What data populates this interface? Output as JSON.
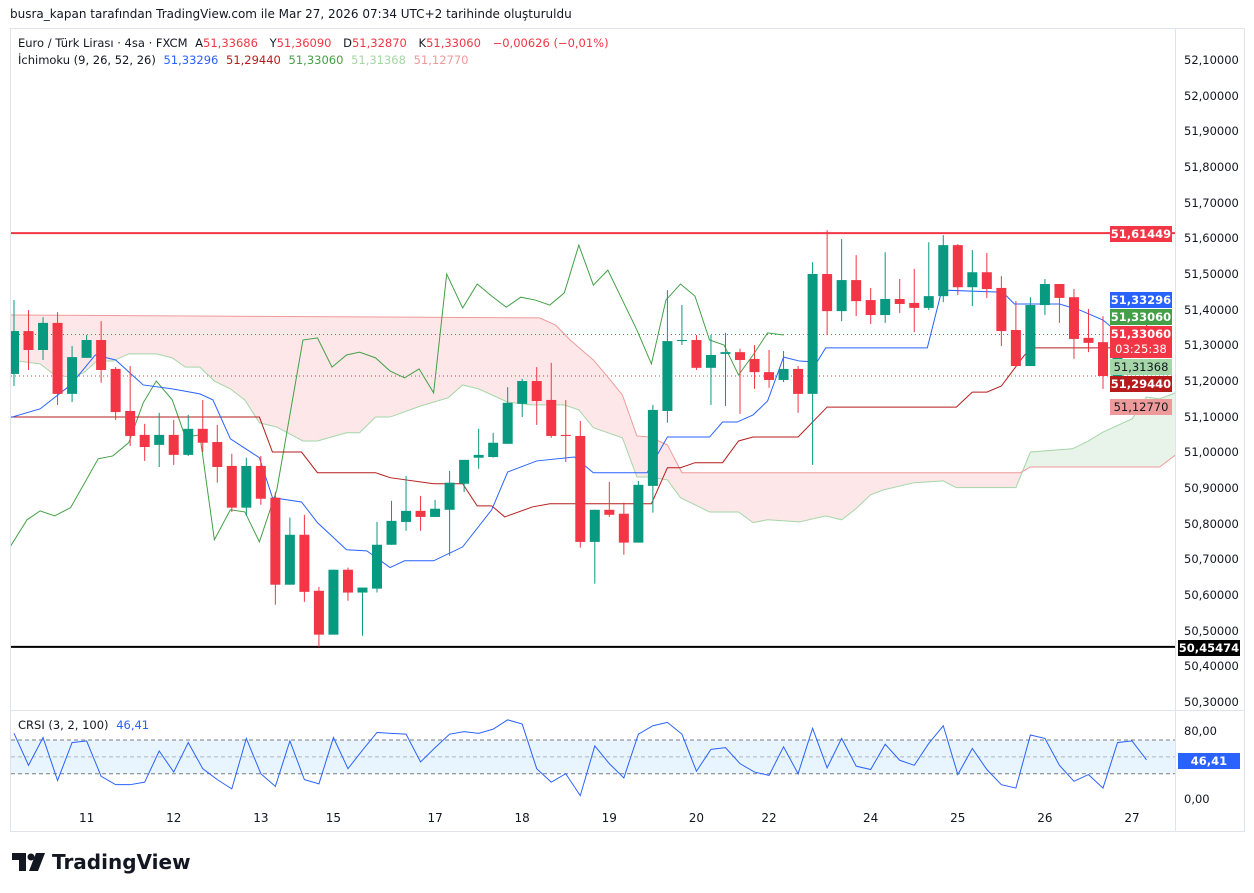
{
  "caption": "busra_kapan tarafından TradingView.com ile Mar 27, 2026 07:34 UTC+2 tarihinde oluşturuldu",
  "legend": {
    "symbol": "Euro / Türk Lirası · 4sa · FXCM",
    "open_label": "A",
    "open": "51,33686",
    "high_label": "Y",
    "high": "51,36090",
    "low_label": "D",
    "low": "51,32870",
    "close_label": "K",
    "close": "51,33060",
    "change": "−0,00626 (−0,01%)",
    "ichimoku_name": "İchimoku (9, 26, 52, 26)",
    "ichimoku_values": [
      "51,33296",
      "51,29440",
      "51,33060",
      "51,31368",
      "51,12770"
    ],
    "crsi_name": "CRSI (3, 2, 100)",
    "crsi_value": "46,41"
  },
  "price_axis": [
    "52,10000",
    "52,00000",
    "51,90000",
    "51,80000",
    "51,70000",
    "51,60000",
    "51,50000",
    "51,40000",
    "51,30000",
    "51,20000",
    "51,10000",
    "51,00000",
    "50,90000",
    "50,80000",
    "50,70000",
    "50,60000",
    "50,50000",
    "50,40000",
    "50,30000"
  ],
  "price_labels": {
    "resistance": "51,61449",
    "tenkan": "51,33296",
    "chikou": "51,33060",
    "last": "51,33060",
    "countdown": "03:25:38",
    "senkou_a": "51,31368",
    "kijun": "51,29440",
    "senkou_b": "51,12770",
    "support": "50,45474"
  },
  "crsi_axis": [
    "80,00",
    "0,00"
  ],
  "time_axis": [
    {
      "label": "11",
      "idx": 5
    },
    {
      "label": "12",
      "idx": 11
    },
    {
      "label": "13",
      "idx": 17
    },
    {
      "label": "15",
      "idx": 22
    },
    {
      "label": "17",
      "idx": 29
    },
    {
      "label": "18",
      "idx": 35
    },
    {
      "label": "19",
      "idx": 41
    },
    {
      "label": "20",
      "idx": 47
    },
    {
      "label": "22",
      "idx": 52
    },
    {
      "label": "24",
      "idx": 59
    },
    {
      "label": "25",
      "idx": 65
    },
    {
      "label": "26",
      "idx": 71
    },
    {
      "label": "27",
      "idx": 77
    }
  ],
  "logo_text": "TradingView",
  "colors": {
    "up": "#089981",
    "down": "#f23645",
    "tenkan": "#2962ff",
    "kijun": "#b71c1c",
    "chikou": "#43a047",
    "senkou_a": "#a5d6a7",
    "senkou_b": "#ef9a9a",
    "resistance": "#f23645",
    "support": "#000000",
    "crsi": "#2962ff"
  },
  "chart_data": {
    "type": "candlestick",
    "title": "Euro / Türk Lirası · 4sa · FXCM",
    "ylim": [
      50.25,
      52.15
    ],
    "horizontal_lines": [
      {
        "price": 51.61449,
        "style": "solid",
        "color": "#f23645"
      },
      {
        "price": 50.45474,
        "style": "solid",
        "color": "#000000"
      },
      {
        "price": 51.3306,
        "style": "dotted",
        "color": "#f23645"
      },
      {
        "price": 51.214,
        "style": "dotted",
        "color": "#f23645"
      }
    ],
    "candles_ohlc": [
      [
        51.22,
        51.427,
        51.186,
        51.34
      ],
      [
        51.34,
        51.399,
        51.231,
        51.287
      ],
      [
        51.287,
        51.379,
        51.259,
        51.363
      ],
      [
        51.363,
        51.393,
        51.133,
        51.164
      ],
      [
        51.164,
        51.298,
        51.141,
        51.267
      ],
      [
        51.265,
        51.329,
        51.265,
        51.315
      ],
      [
        51.315,
        51.368,
        51.195,
        51.231
      ],
      [
        51.234,
        51.239,
        51.091,
        51.113
      ],
      [
        51.116,
        51.242,
        51.018,
        51.046
      ],
      [
        51.049,
        51.08,
        50.976,
        51.015
      ],
      [
        51.021,
        51.111,
        50.959,
        51.049
      ],
      [
        51.049,
        51.091,
        50.965,
        50.993
      ],
      [
        50.993,
        51.105,
        50.99,
        51.066
      ],
      [
        51.066,
        51.147,
        51.001,
        51.027
      ],
      [
        51.029,
        51.077,
        50.915,
        50.959
      ],
      [
        50.962,
        50.996,
        50.833,
        50.845
      ],
      [
        50.845,
        50.985,
        50.822,
        50.962
      ],
      [
        50.962,
        50.99,
        50.853,
        50.87
      ],
      [
        50.873,
        50.889,
        50.573,
        50.629
      ],
      [
        50.629,
        50.817,
        50.629,
        50.769
      ],
      [
        50.769,
        50.825,
        50.581,
        50.609
      ],
      [
        50.612,
        50.623,
        50.455,
        50.489
      ],
      [
        50.489,
        50.671,
        50.489,
        50.671
      ],
      [
        50.671,
        50.677,
        50.584,
        50.607
      ],
      [
        50.607,
        50.621,
        50.486,
        50.621
      ],
      [
        50.618,
        50.805,
        50.607,
        50.741
      ],
      [
        50.741,
        50.864,
        50.741,
        50.808
      ],
      [
        50.805,
        50.934,
        50.78,
        50.836
      ],
      [
        50.836,
        50.878,
        50.78,
        50.819
      ],
      [
        50.819,
        50.867,
        50.819,
        50.842
      ],
      [
        50.839,
        50.948,
        50.71,
        50.915
      ],
      [
        50.912,
        50.979,
        50.889,
        50.979
      ],
      [
        50.985,
        51.066,
        50.954,
        50.993
      ],
      [
        50.987,
        51.055,
        50.985,
        51.027
      ],
      [
        51.024,
        51.183,
        51.024,
        51.139
      ],
      [
        51.136,
        51.206,
        51.099,
        51.2
      ],
      [
        51.2,
        51.239,
        51.077,
        51.144
      ],
      [
        51.147,
        51.251,
        51.041,
        51.046
      ],
      [
        51.049,
        51.147,
        50.973,
        51.046
      ],
      [
        51.046,
        51.088,
        50.733,
        50.749
      ],
      [
        50.749,
        50.839,
        50.632,
        50.839
      ],
      [
        50.839,
        50.917,
        50.819,
        50.825
      ],
      [
        50.828,
        50.859,
        50.713,
        50.747
      ],
      [
        50.747,
        50.92,
        50.747,
        50.909
      ],
      [
        50.906,
        51.133,
        50.831,
        51.119
      ],
      [
        51.116,
        51.455,
        51.083,
        51.312
      ],
      [
        51.312,
        51.413,
        51.301,
        51.315
      ],
      [
        51.315,
        51.329,
        51.231,
        51.237
      ],
      [
        51.237,
        51.329,
        51.133,
        51.273
      ],
      [
        51.276,
        51.335,
        51.13,
        51.281
      ],
      [
        51.281,
        51.29,
        51.108,
        51.259
      ],
      [
        51.262,
        51.301,
        51.178,
        51.225
      ],
      [
        51.225,
        51.287,
        51.181,
        51.203
      ],
      [
        51.203,
        51.284,
        51.197,
        51.234
      ],
      [
        51.234,
        51.242,
        51.111,
        51.164
      ],
      [
        51.164,
        51.533,
        50.965,
        51.5
      ],
      [
        51.5,
        51.623,
        51.329,
        51.396
      ],
      [
        51.396,
        51.598,
        51.368,
        51.483
      ],
      [
        51.483,
        51.553,
        51.382,
        51.424
      ],
      [
        51.427,
        51.461,
        51.36,
        51.385
      ],
      [
        51.385,
        51.561,
        51.363,
        51.43
      ],
      [
        51.43,
        51.486,
        51.391,
        51.416
      ],
      [
        51.419,
        51.514,
        51.337,
        51.405
      ],
      [
        51.405,
        51.589,
        51.399,
        51.438
      ],
      [
        51.438,
        51.609,
        51.421,
        51.581
      ],
      [
        51.581,
        51.584,
        51.441,
        51.463
      ],
      [
        51.463,
        51.567,
        51.41,
        51.505
      ],
      [
        51.505,
        51.559,
        51.433,
        51.458
      ],
      [
        51.461,
        51.494,
        51.298,
        51.34
      ],
      [
        51.343,
        51.424,
        51.242,
        51.242
      ],
      [
        51.242,
        51.435,
        51.242,
        51.413
      ],
      [
        51.413,
        51.486,
        51.385,
        51.472
      ],
      [
        51.472,
        51.472,
        51.363,
        51.433
      ],
      [
        51.435,
        51.458,
        51.262,
        51.318
      ],
      [
        51.321,
        51.402,
        51.281,
        51.307
      ],
      [
        51.309,
        51.382,
        51.178,
        51.214
      ],
      [
        51.214,
        51.337,
        51.214,
        51.293
      ],
      [
        51.293,
        51.34,
        51.293,
        51.335
      ],
      [
        51.33686,
        51.3609,
        51.3287,
        51.3306
      ]
    ],
    "tenkan": [
      [
        -0.3,
        51.097
      ],
      [
        1.8,
        51.122
      ],
      [
        3.9,
        51.189
      ],
      [
        5.6,
        51.273
      ],
      [
        7.0,
        51.259
      ],
      [
        8.9,
        51.189
      ],
      [
        10.9,
        51.178
      ],
      [
        12.8,
        51.164
      ],
      [
        13.7,
        51.147
      ],
      [
        14.9,
        51.038
      ],
      [
        16.9,
        50.985
      ],
      [
        17.8,
        50.873
      ],
      [
        19.8,
        50.861
      ],
      [
        20.9,
        50.803
      ],
      [
        22.9,
        50.727
      ],
      [
        24.3,
        50.724
      ],
      [
        25.9,
        50.677
      ],
      [
        26.9,
        50.696
      ],
      [
        28.9,
        50.696
      ],
      [
        30.9,
        50.735
      ],
      [
        32.9,
        50.839
      ],
      [
        34.0,
        50.945
      ],
      [
        36.0,
        50.976
      ],
      [
        38.6,
        50.987
      ],
      [
        39.9,
        50.943
      ],
      [
        43.6,
        50.943
      ],
      [
        45.0,
        51.043
      ],
      [
        47.9,
        51.043
      ],
      [
        48.8,
        51.085
      ],
      [
        49.8,
        51.085
      ],
      [
        50.9,
        51.105
      ],
      [
        51.9,
        51.144
      ],
      [
        53.0,
        51.267
      ],
      [
        54.1,
        51.256
      ],
      [
        55.3,
        51.253
      ],
      [
        55.9,
        51.293
      ],
      [
        62.9,
        51.293
      ],
      [
        63.9,
        51.455
      ],
      [
        68.1,
        51.449
      ],
      [
        68.9,
        51.416
      ],
      [
        72.0,
        51.416
      ],
      [
        73.4,
        51.399
      ],
      [
        75.0,
        51.371
      ],
      [
        76.0,
        51.337
      ],
      [
        77.5,
        51.333
      ]
    ],
    "kijun": [
      [
        -0.3,
        51.099
      ],
      [
        16.9,
        51.099
      ],
      [
        17.8,
        51.001
      ],
      [
        19.8,
        51.001
      ],
      [
        20.9,
        50.943
      ],
      [
        24.9,
        50.943
      ],
      [
        25.9,
        50.929
      ],
      [
        28.9,
        50.912
      ],
      [
        30.9,
        50.912
      ],
      [
        31.9,
        50.85
      ],
      [
        32.9,
        50.85
      ],
      [
        33.8,
        50.819
      ],
      [
        35.7,
        50.847
      ],
      [
        36.9,
        50.856
      ],
      [
        43.9,
        50.856
      ],
      [
        45.0,
        50.957
      ],
      [
        45.9,
        50.957
      ],
      [
        46.9,
        50.971
      ],
      [
        48.8,
        50.971
      ],
      [
        49.9,
        51.032
      ],
      [
        50.9,
        51.043
      ],
      [
        54.0,
        51.043
      ],
      [
        56.0,
        51.127
      ],
      [
        64.9,
        51.127
      ],
      [
        66.0,
        51.169
      ],
      [
        67.0,
        51.169
      ],
      [
        68.0,
        51.186
      ],
      [
        69.6,
        51.273
      ],
      [
        70.3,
        51.293
      ],
      [
        77.9,
        51.293
      ]
    ],
    "chikou": [
      [
        -0.3,
        50.733
      ],
      [
        0.9,
        50.811
      ],
      [
        1.8,
        50.836
      ],
      [
        2.8,
        50.822
      ],
      [
        3.9,
        50.845
      ],
      [
        5.8,
        50.982
      ],
      [
        6.8,
        50.99
      ],
      [
        7.9,
        51.027
      ],
      [
        8.9,
        51.139
      ],
      [
        9.8,
        51.2
      ],
      [
        10.9,
        51.147
      ],
      [
        11.8,
        51.043
      ],
      [
        12.8,
        51.049
      ],
      [
        13.8,
        50.755
      ],
      [
        14.9,
        50.839
      ],
      [
        15.9,
        50.833
      ],
      [
        16.9,
        50.749
      ],
      [
        18.1,
        50.895
      ],
      [
        19.9,
        51.315
      ],
      [
        20.9,
        51.321
      ],
      [
        21.9,
        51.239
      ],
      [
        22.9,
        51.273
      ],
      [
        23.8,
        51.281
      ],
      [
        24.9,
        51.265
      ],
      [
        25.9,
        51.228
      ],
      [
        26.9,
        51.209
      ],
      [
        27.9,
        51.234
      ],
      [
        28.9,
        51.167
      ],
      [
        29.8,
        51.5
      ],
      [
        30.9,
        51.405
      ],
      [
        31.9,
        51.472
      ],
      [
        32.9,
        51.438
      ],
      [
        33.9,
        51.407
      ],
      [
        34.9,
        51.435
      ],
      [
        35.9,
        51.427
      ],
      [
        36.9,
        51.413
      ],
      [
        37.9,
        51.447
      ],
      [
        38.9,
        51.581
      ],
      [
        39.9,
        51.469
      ],
      [
        40.9,
        51.511
      ],
      [
        41.9,
        51.427
      ],
      [
        42.9,
        51.343
      ],
      [
        43.9,
        51.248
      ],
      [
        44.9,
        51.427
      ],
      [
        45.9,
        51.472
      ],
      [
        46.9,
        51.438
      ],
      [
        47.9,
        51.315
      ],
      [
        48.9,
        51.301
      ],
      [
        49.9,
        51.217
      ],
      [
        50.9,
        51.273
      ],
      [
        51.9,
        51.335
      ],
      [
        53.0,
        51.329
      ]
    ],
    "senkou_a": [
      [
        -0.3,
        51.259
      ],
      [
        1.8,
        51.248
      ],
      [
        2.8,
        51.217
      ],
      [
        3.9,
        51.211
      ],
      [
        4.8,
        51.223
      ],
      [
        5.7,
        51.256
      ],
      [
        6.8,
        51.256
      ],
      [
        7.9,
        51.276
      ],
      [
        9.8,
        51.276
      ],
      [
        10.9,
        51.265
      ],
      [
        11.8,
        51.239
      ],
      [
        12.8,
        51.239
      ],
      [
        13.8,
        51.2
      ],
      [
        14.9,
        51.178
      ],
      [
        15.9,
        51.147
      ],
      [
        16.9,
        51.083
      ],
      [
        18.1,
        51.071
      ],
      [
        19.9,
        51.032
      ],
      [
        20.9,
        51.032
      ],
      [
        22.9,
        51.055
      ],
      [
        23.8,
        51.055
      ],
      [
        24.9,
        51.099
      ],
      [
        25.9,
        51.099
      ],
      [
        28.0,
        51.13
      ],
      [
        29.9,
        51.153
      ],
      [
        30.9,
        51.189
      ],
      [
        32.0,
        51.178
      ],
      [
        34.0,
        51.141
      ],
      [
        35.7,
        51.133
      ],
      [
        37.9,
        51.133
      ],
      [
        38.9,
        51.119
      ],
      [
        39.9,
        51.069
      ],
      [
        41.9,
        51.041
      ],
      [
        42.9,
        50.931
      ],
      [
        43.8,
        50.931
      ],
      [
        45.0,
        50.923
      ],
      [
        45.9,
        50.873
      ],
      [
        47.9,
        50.833
      ],
      [
        49.9,
        50.833
      ],
      [
        50.9,
        50.803
      ],
      [
        51.9,
        50.811
      ],
      [
        54.1,
        50.805
      ],
      [
        55.9,
        50.822
      ],
      [
        57.0,
        50.811
      ],
      [
        57.9,
        50.839
      ],
      [
        59.0,
        50.881
      ],
      [
        59.9,
        50.895
      ],
      [
        62.0,
        50.915
      ],
      [
        64.0,
        50.92
      ],
      [
        64.9,
        50.901
      ],
      [
        69.0,
        50.901
      ],
      [
        70.0,
        51.001
      ],
      [
        72.9,
        51.01
      ],
      [
        74.0,
        51.032
      ],
      [
        75.0,
        51.057
      ],
      [
        77.0,
        51.094
      ],
      [
        78.0,
        51.155
      ],
      [
        78.9,
        51.15
      ],
      [
        80.0,
        51.167
      ]
    ],
    "senkou_b": [
      [
        -0.3,
        51.385
      ],
      [
        36.2,
        51.377
      ],
      [
        37.3,
        51.357
      ],
      [
        38.3,
        51.315
      ],
      [
        39.9,
        51.259
      ],
      [
        40.9,
        51.211
      ],
      [
        41.9,
        51.161
      ],
      [
        42.9,
        51.046
      ],
      [
        43.8,
        51.043
      ],
      [
        45.0,
        51.021
      ],
      [
        46.0,
        50.943
      ],
      [
        69.3,
        50.943
      ],
      [
        70.0,
        50.959
      ],
      [
        78.9,
        50.959
      ],
      [
        80.0,
        50.993
      ]
    ],
    "crsi": {
      "ylim": [
        0,
        100
      ],
      "bands": [
        30,
        50,
        70
      ],
      "values": [
        78,
        40,
        73,
        22,
        67,
        69,
        27,
        17,
        17,
        20,
        57,
        32,
        67,
        36,
        23,
        12,
        72,
        30,
        15,
        69,
        23,
        18,
        73,
        36,
        58,
        79,
        78,
        77,
        44,
        61,
        77,
        80,
        78,
        83,
        94,
        89,
        36,
        20,
        30,
        4,
        63,
        42,
        25,
        77,
        87,
        91,
        77,
        33,
        59,
        61,
        42,
        32,
        28,
        62,
        30,
        84,
        37,
        72,
        39,
        35,
        65,
        46,
        40,
        66,
        87,
        29,
        60,
        35,
        17,
        13,
        76,
        72,
        40,
        21,
        29,
        13,
        67,
        69,
        46.41
      ]
    }
  }
}
